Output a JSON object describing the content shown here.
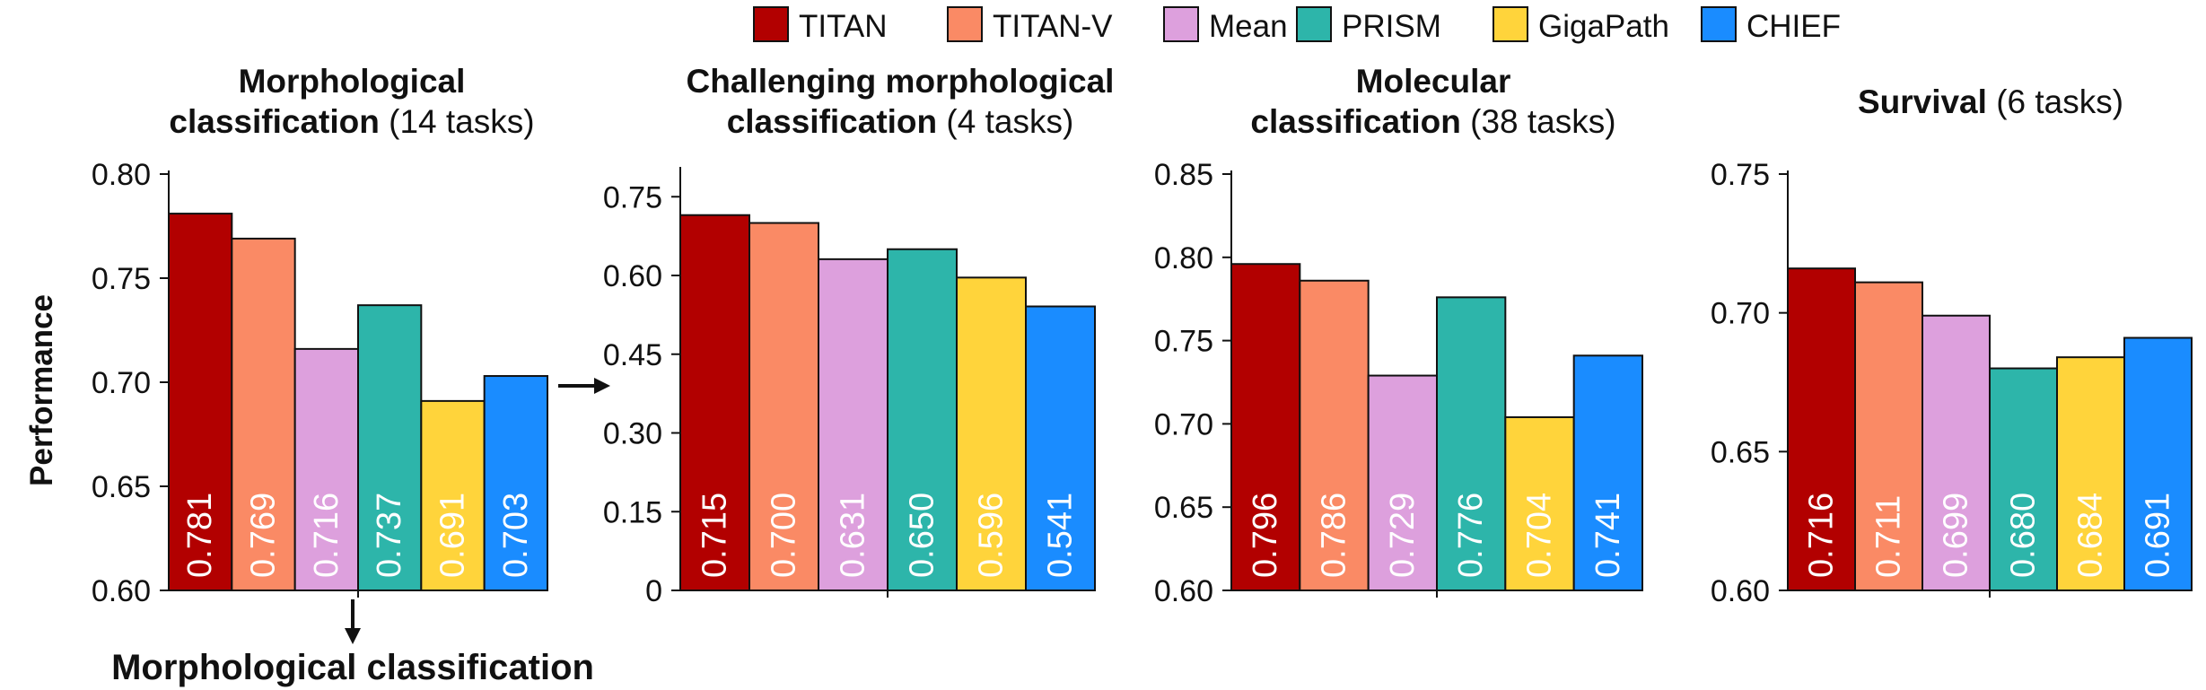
{
  "legend": [
    {
      "name": "TITAN",
      "color": "#B20000"
    },
    {
      "name": "TITAN-V",
      "color": "#FA8A65"
    },
    {
      "name": "Mean",
      "color": "#DDA0DD"
    },
    {
      "name": "PRISM",
      "color": "#2DB5AA"
    },
    {
      "name": "GigaPath",
      "color": "#FFD43B"
    },
    {
      "name": "CHIEF",
      "color": "#1A8CFF"
    }
  ],
  "ylabel": "Performance",
  "bottom_annotation": "Morphological classification",
  "chart_data": [
    {
      "type": "bar",
      "title_lines": [
        [
          {
            "text": "Morphological",
            "bold": true
          }
        ],
        [
          {
            "text": "classification",
            "bold": true
          },
          {
            "text": " (14 tasks)",
            "bold": false
          }
        ]
      ],
      "categories": [
        "TITAN",
        "TITAN-V",
        "Mean",
        "PRISM",
        "GigaPath",
        "CHIEF"
      ],
      "values": [
        0.781,
        0.769,
        0.716,
        0.737,
        0.691,
        0.703
      ],
      "value_labels": [
        "0.781",
        "0.769",
        "0.716",
        "0.737",
        "0.691",
        "0.703"
      ],
      "ylim": [
        0.6,
        0.8
      ],
      "yticks": [
        0.6,
        0.65,
        0.7,
        0.75,
        0.8
      ],
      "ytick_labels": [
        "0.60",
        "0.65",
        "0.70",
        "0.75",
        "0.80"
      ],
      "ylabel": "Performance"
    },
    {
      "type": "bar",
      "title_lines": [
        [
          {
            "text": "Challenging morphological",
            "bold": true
          }
        ],
        [
          {
            "text": "classification",
            "bold": true
          },
          {
            "text": " (4 tasks)",
            "bold": false
          }
        ]
      ],
      "categories": [
        "TITAN",
        "TITAN-V",
        "Mean",
        "PRISM",
        "GigaPath",
        "CHIEF"
      ],
      "values": [
        0.715,
        0.7,
        0.631,
        0.65,
        0.596,
        0.541
      ],
      "value_labels": [
        "0.715",
        "0.700",
        "0.631",
        "0.650",
        "0.596",
        "0.541"
      ],
      "ylim": [
        0,
        0.8
      ],
      "yticks": [
        0,
        0.15,
        0.3,
        0.45,
        0.6,
        0.75
      ],
      "ytick_labels": [
        "0",
        "0.15",
        "0.30",
        "0.45",
        "0.60",
        "0.75"
      ]
    },
    {
      "type": "bar",
      "title_lines": [
        [
          {
            "text": "Molecular",
            "bold": true
          }
        ],
        [
          {
            "text": "classification",
            "bold": true
          },
          {
            "text": " (38 tasks)",
            "bold": false
          }
        ]
      ],
      "categories": [
        "TITAN",
        "TITAN-V",
        "Mean",
        "PRISM",
        "GigaPath",
        "CHIEF"
      ],
      "values": [
        0.796,
        0.786,
        0.729,
        0.776,
        0.704,
        0.741
      ],
      "value_labels": [
        "0.796",
        "0.786",
        "0.729",
        "0.776",
        "0.704",
        "0.741"
      ],
      "ylim": [
        0.6,
        0.85
      ],
      "yticks": [
        0.6,
        0.65,
        0.7,
        0.75,
        0.8,
        0.85
      ],
      "ytick_labels": [
        "0.60",
        "0.65",
        "0.70",
        "0.75",
        "0.80",
        "0.85"
      ]
    },
    {
      "type": "bar",
      "title_lines": [
        [
          {
            "text": "Survival",
            "bold": true
          },
          {
            "text": " (6 tasks)",
            "bold": false
          }
        ]
      ],
      "categories": [
        "TITAN",
        "TITAN-V",
        "Mean",
        "PRISM",
        "GigaPath",
        "CHIEF"
      ],
      "values": [
        0.716,
        0.711,
        0.699,
        0.68,
        0.684,
        0.691
      ],
      "value_labels": [
        "0.716",
        "0.711",
        "0.699",
        "0.680",
        "0.684",
        "0.691"
      ],
      "ylim": [
        0.6,
        0.75
      ],
      "yticks": [
        0.6,
        0.65,
        0.7,
        0.75
      ],
      "ytick_labels": [
        "0.60",
        "0.65",
        "0.70",
        "0.75"
      ]
    }
  ]
}
